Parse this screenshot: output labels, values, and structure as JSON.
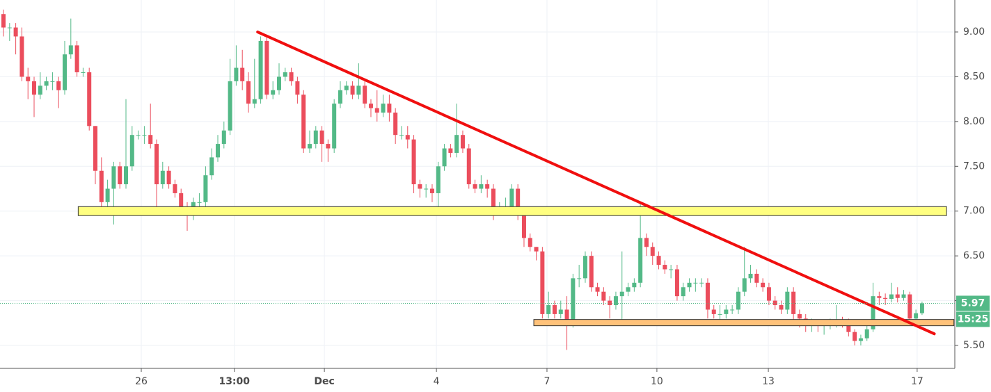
{
  "chart_data": {
    "type": "candlestick",
    "up_color": "#53b987",
    "down_color": "#eb4d5c",
    "xlim": [
      -0.57,
      155.35
    ],
    "ylim": [
      5.244,
      9.357
    ],
    "grid": true,
    "xticks": [
      {
        "value": 22.5,
        "label": "26"
      },
      {
        "value": 37.7,
        "label": "13:00"
      },
      {
        "value": 52.4,
        "label": "Dec"
      },
      {
        "value": 70.7,
        "label": "4"
      },
      {
        "value": 88.75,
        "label": "7"
      },
      {
        "value": 106.7,
        "label": "10"
      },
      {
        "value": 124.9,
        "label": "13"
      },
      {
        "value": 149.2,
        "label": "17"
      }
    ],
    "yticks": [
      {
        "value": 5.5,
        "label": "5.50"
      },
      {
        "value": 6,
        "label": "6.00"
      },
      {
        "value": 6.5,
        "label": "6.50"
      },
      {
        "value": 7,
        "label": "7.00"
      },
      {
        "value": 7.5,
        "label": "7.50"
      },
      {
        "value": 8,
        "label": "8.00"
      },
      {
        "value": 8.5,
        "label": "8.50"
      },
      {
        "value": 9,
        "label": "9.00"
      }
    ],
    "open": [
      9.2,
      9.05,
      9.05,
      8.95,
      8.5,
      8.45,
      8.3,
      8.4,
      8.45,
      8.45,
      8.35,
      8.75,
      8.85,
      8.55,
      8.55,
      7.95,
      7.45,
      7.1,
      7.25,
      7.5,
      7.3,
      7.5,
      7.85,
      7.85,
      7.85,
      7.75,
      7.3,
      7.45,
      7.3,
      7.2,
      7.05,
      6.95,
      7.1,
      7.1,
      7.4,
      7.6,
      7.75,
      7.9,
      8.45,
      8.6,
      8.45,
      8.2,
      8.25,
      8.9,
      8.3,
      8.35,
      8.5,
      8.55,
      8.45,
      8.3,
      7.7,
      7.75,
      7.9,
      7.75,
      7.7,
      8.2,
      8.35,
      8.4,
      8.3,
      8.4,
      8.2,
      8.15,
      8.1,
      8.2,
      8.1,
      7.85,
      7.85,
      7.8,
      7.3,
      7.25,
      7.25,
      7.2,
      7.5,
      7.7,
      7.65,
      7.85,
      7.7,
      7.3,
      7.25,
      7.3,
      7.25,
      6.95,
      7.05,
      7.05,
      7.25,
      6.95,
      6.7,
      6.6,
      6.55,
      5.85,
      5.95,
      5.85,
      5.9,
      5.75,
      6.25,
      6.25,
      6.5,
      6.15,
      6.1,
      6.0,
      5.95,
      6.05,
      6.1,
      6.15,
      6.2,
      6.7,
      6.6,
      6.5,
      6.4,
      6.35,
      6.35,
      6.05,
      6.15,
      6.2,
      6.2,
      6.2,
      5.9,
      5.85,
      5.85,
      5.9,
      5.9,
      6.1,
      6.25,
      6.3,
      6.2,
      6.15,
      6.0,
      5.95,
      5.9,
      6.1,
      5.85,
      5.8,
      5.72,
      5.74,
      5.72,
      5.73,
      5.75,
      5.78,
      5.75,
      5.65,
      5.55,
      5.58,
      5.68,
      6.05,
      6.03,
      6.02,
      6.07,
      6.03,
      6.07,
      5.8,
      5.86
    ],
    "high": [
      9.25,
      9.1,
      9.1,
      9.05,
      8.6,
      8.5,
      8.55,
      8.5,
      8.55,
      8.5,
      8.9,
      9.15,
      8.9,
      8.6,
      8.6,
      7.95,
      7.6,
      7.35,
      7.55,
      7.55,
      8.25,
      7.95,
      7.9,
      7.95,
      8.2,
      7.8,
      7.55,
      7.5,
      7.35,
      7.25,
      7.1,
      7.15,
      7.2,
      7.5,
      7.7,
      7.85,
      8.0,
      8.7,
      8.85,
      8.8,
      8.55,
      8.7,
      8.95,
      8.95,
      8.45,
      8.65,
      8.6,
      8.6,
      8.5,
      8.35,
      7.9,
      7.95,
      7.95,
      7.8,
      8.25,
      8.45,
      8.45,
      8.45,
      8.65,
      8.45,
      8.25,
      8.35,
      8.3,
      8.3,
      8.15,
      7.95,
      7.95,
      7.85,
      7.35,
      7.3,
      7.3,
      7.55,
      7.75,
      7.75,
      8.2,
      7.9,
      7.75,
      7.35,
      7.4,
      7.35,
      7.3,
      7.1,
      7.15,
      7.3,
      7.3,
      7.0,
      6.75,
      6.6,
      6.6,
      6.1,
      6.0,
      6.0,
      6.05,
      6.3,
      6.4,
      6.55,
      6.55,
      6.2,
      6.15,
      6.05,
      6.1,
      6.55,
      6.2,
      6.25,
      7.1,
      6.75,
      6.65,
      6.55,
      6.45,
      6.4,
      6.4,
      6.2,
      6.25,
      6.25,
      6.25,
      6.25,
      5.95,
      5.95,
      5.95,
      5.95,
      6.15,
      6.6,
      6.4,
      6.35,
      6.25,
      6.2,
      6.05,
      6.0,
      6.15,
      6.15,
      5.9,
      5.85,
      5.8,
      5.78,
      5.78,
      5.8,
      5.95,
      5.82,
      5.8,
      5.68,
      5.62,
      5.72,
      6.2,
      6.1,
      6.08,
      6.2,
      6.15,
      6.12,
      6.1,
      5.9,
      5.99
    ],
    "low": [
      8.95,
      8.9,
      8.75,
      8.45,
      8.25,
      8.05,
      8.25,
      8.35,
      8.35,
      8.15,
      8.3,
      8.7,
      8.5,
      8.5,
      7.9,
      7.3,
      7.05,
      7.05,
      6.85,
      7.25,
      7.25,
      7.45,
      7.8,
      7.75,
      7.7,
      7.0,
      7.25,
      7.25,
      7.15,
      6.95,
      6.78,
      6.9,
      7.0,
      7.05,
      7.35,
      7.55,
      7.7,
      7.85,
      8.4,
      8.35,
      8.1,
      8.15,
      8.2,
      8.25,
      8.25,
      8.3,
      8.45,
      8.4,
      8.2,
      7.65,
      7.65,
      7.7,
      7.55,
      7.55,
      7.65,
      8.15,
      8.3,
      8.25,
      8.25,
      8.15,
      8.05,
      8.0,
      8.05,
      8.0,
      7.75,
      7.8,
      7.7,
      7.2,
      7.15,
      7.15,
      7.1,
      7.05,
      7.45,
      7.6,
      7.6,
      7.65,
      7.25,
      7.2,
      7.2,
      7.15,
      6.9,
      6.95,
      6.95,
      7.0,
      6.9,
      6.6,
      6.55,
      6.45,
      5.8,
      5.8,
      5.8,
      5.8,
      5.45,
      5.7,
      6.15,
      6.2,
      6.1,
      6.05,
      5.95,
      5.8,
      5.9,
      5.75,
      6.05,
      6.1,
      6.15,
      6.5,
      6.4,
      6.35,
      6.3,
      6.25,
      6.0,
      6.0,
      6.1,
      6.1,
      6.15,
      5.8,
      5.8,
      5.75,
      5.8,
      5.85,
      5.85,
      6.05,
      6.2,
      6.15,
      6.1,
      5.95,
      5.9,
      5.85,
      5.85,
      5.75,
      5.7,
      5.65,
      5.65,
      5.65,
      5.62,
      5.68,
      5.7,
      5.7,
      5.6,
      5.5,
      5.5,
      5.55,
      5.65,
      5.95,
      5.95,
      5.98,
      5.98,
      6.0,
      5.75,
      5.75,
      5.84
    ],
    "close": [
      9.05,
      9.05,
      8.95,
      8.5,
      8.45,
      8.3,
      8.4,
      8.45,
      8.45,
      8.35,
      8.75,
      8.85,
      8.55,
      8.55,
      7.95,
      7.45,
      7.1,
      7.25,
      7.5,
      7.3,
      7.5,
      7.85,
      7.85,
      7.85,
      7.75,
      7.3,
      7.45,
      7.3,
      7.2,
      7.05,
      6.95,
      7.1,
      7.1,
      7.4,
      7.6,
      7.75,
      7.9,
      8.45,
      8.6,
      8.45,
      8.2,
      8.25,
      8.9,
      8.3,
      8.35,
      8.5,
      8.55,
      8.45,
      8.3,
      7.7,
      7.75,
      7.9,
      7.75,
      7.7,
      8.2,
      8.35,
      8.4,
      8.3,
      8.4,
      8.2,
      8.15,
      8.1,
      8.2,
      8.1,
      7.85,
      7.85,
      7.8,
      7.3,
      7.25,
      7.25,
      7.2,
      7.5,
      7.7,
      7.65,
      7.85,
      7.7,
      7.3,
      7.25,
      7.3,
      7.25,
      6.95,
      7.05,
      7.05,
      7.25,
      6.95,
      6.7,
      6.6,
      6.55,
      5.85,
      5.95,
      5.85,
      5.9,
      5.75,
      6.25,
      6.25,
      6.5,
      6.15,
      6.1,
      6.0,
      5.95,
      6.05,
      6.1,
      6.15,
      6.2,
      6.7,
      6.6,
      6.5,
      6.4,
      6.35,
      6.35,
      6.05,
      6.15,
      6.2,
      6.2,
      6.2,
      5.9,
      5.85,
      5.85,
      5.9,
      5.9,
      6.1,
      6.25,
      6.3,
      6.2,
      6.15,
      6.0,
      5.95,
      5.9,
      6.1,
      5.85,
      5.8,
      5.72,
      5.74,
      5.72,
      5.73,
      5.75,
      5.78,
      5.75,
      5.65,
      5.55,
      5.58,
      5.68,
      6.05,
      6.03,
      6.02,
      6.07,
      6.03,
      6.07,
      5.8,
      5.86,
      5.97
    ],
    "zones": [
      {
        "color": "#ffff80",
        "x": [
          12.2,
          154
        ],
        "y": [
          6.95,
          7.05
        ]
      },
      {
        "color": "#ffc27a",
        "x": [
          86.6,
          155.2
        ],
        "y": [
          5.72,
          5.79
        ]
      }
    ],
    "trendline": {
      "color": "#f00f0f",
      "x": [
        41.5,
        152
      ],
      "y": [
        9.0,
        5.63
      ]
    },
    "last_price": 5.97,
    "countdown": "15:25",
    "label_color": "#53b987"
  }
}
